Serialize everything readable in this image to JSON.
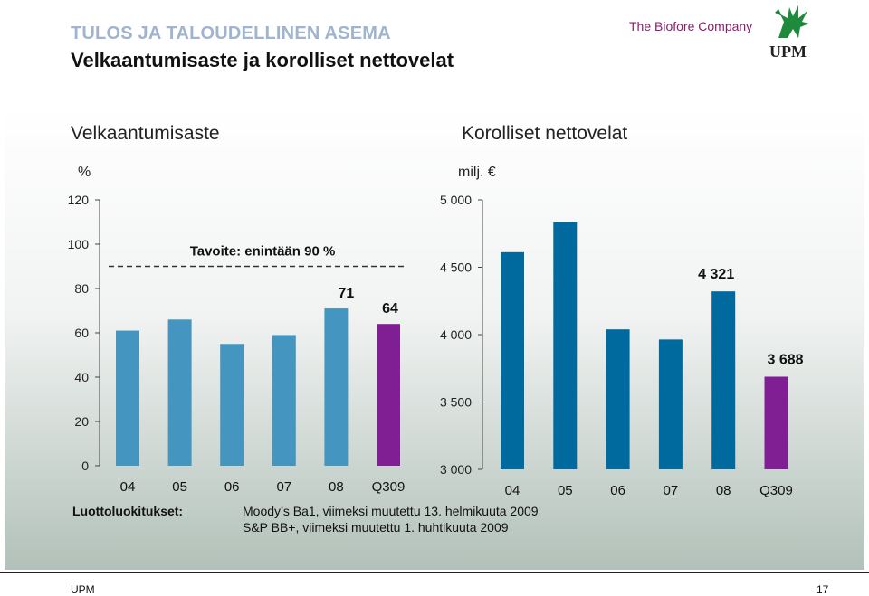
{
  "header": {
    "supertitle": "TULOS JA TALOUDELLINEN ASEMA",
    "title": "Velkaantumisaste ja korolliset nettovelat",
    "tagline": "The Biofore Company",
    "logo_text": "UPM"
  },
  "colors": {
    "bar_history": "#4496c0",
    "bar_history_right": "#006a9f",
    "bar_current": "#7f1f93",
    "brand_green": "#1e8a3c"
  },
  "chart_data": [
    {
      "type": "bar",
      "title": "Velkaantumisaste",
      "ylabel": "%",
      "categories": [
        "04",
        "05",
        "06",
        "07",
        "08",
        "Q309"
      ],
      "values": [
        61,
        66,
        55,
        59,
        71,
        64
      ],
      "data_labels": [
        "",
        "",
        "",
        "",
        "71",
        "64"
      ],
      "ylim": [
        0,
        120
      ],
      "yticks": [
        "0",
        "20",
        "40",
        "60",
        "80",
        "100",
        "120"
      ],
      "target_line": {
        "value": 90,
        "label": "Tavoite: enintään 90 %"
      },
      "grid": false
    },
    {
      "type": "bar",
      "title": "Korolliset nettovelat",
      "ylabel": "milj. €",
      "categories": [
        "04",
        "05",
        "06",
        "07",
        "08",
        "Q309"
      ],
      "values": [
        4612,
        4834,
        4039,
        3964,
        4321,
        3688
      ],
      "data_labels": [
        "",
        "",
        "",
        "",
        "4 321",
        "3 688"
      ],
      "ylim": [
        3000,
        5000
      ],
      "yticks": [
        "3 000",
        "3 500",
        "4 000",
        "4 500",
        "5 000"
      ],
      "grid": false
    }
  ],
  "ratings": {
    "label": "Luottoluokitukset:",
    "lines": [
      "Moody’s Ba1, viimeksi muutettu 13. helmikuuta 2009",
      "S&P BB+, viimeksi muutettu 1. huhtikuuta 2009"
    ]
  },
  "footer": {
    "left": "UPM",
    "page": "17"
  }
}
